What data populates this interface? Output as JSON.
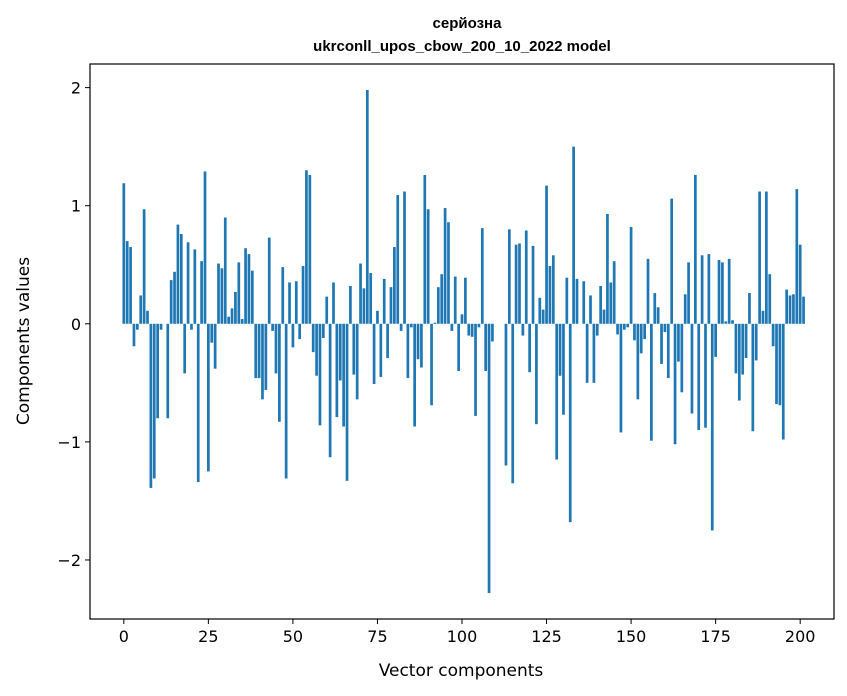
{
  "chart_data": {
    "type": "bar",
    "title": "серйозна",
    "subtitle": "ukrconll_upos_cbow_200_10_2022 model",
    "xlabel": "Vector components",
    "ylabel": "Components values",
    "xlim": [
      -10,
      210
    ],
    "ylim": [
      -2.5,
      2.2
    ],
    "xticks": [
      0,
      25,
      50,
      75,
      100,
      125,
      150,
      175,
      200
    ],
    "xtick_labels": [
      "0",
      "25",
      "50",
      "75",
      "100",
      "125",
      "150",
      "175",
      "200"
    ],
    "yticks": [
      -2,
      -1,
      0,
      1,
      2
    ],
    "ytick_labels": [
      "−2",
      "−1",
      "0",
      "1",
      "2"
    ],
    "bar_color": "#1f77b4",
    "grid": false,
    "values": [
      1.19,
      0.7,
      0.65,
      -0.19,
      -0.05,
      0.24,
      0.97,
      0.11,
      -1.39,
      -1.31,
      -0.8,
      -0.05,
      0.0,
      -0.8,
      0.37,
      0.44,
      0.84,
      0.76,
      -0.42,
      0.69,
      -0.05,
      0.63,
      -1.34,
      0.53,
      1.29,
      -1.25,
      -0.16,
      -0.38,
      0.51,
      0.47,
      0.9,
      0.06,
      0.13,
      0.27,
      0.52,
      0.04,
      0.64,
      0.59,
      0.45,
      -0.46,
      -0.46,
      -0.64,
      -0.56,
      0.73,
      -0.06,
      -0.42,
      -0.83,
      0.48,
      -1.31,
      0.35,
      -0.2,
      0.36,
      -0.13,
      0.49,
      1.3,
      1.26,
      -0.24,
      -0.44,
      -0.86,
      -0.12,
      0.23,
      -1.13,
      0.35,
      -0.79,
      -0.48,
      -0.87,
      -1.33,
      0.32,
      -0.43,
      -0.64,
      0.51,
      0.3,
      1.98,
      0.43,
      -0.51,
      0.11,
      -0.45,
      0.38,
      -0.29,
      0.31,
      0.65,
      1.09,
      -0.06,
      1.12,
      -0.46,
      -0.03,
      -0.87,
      -0.3,
      -0.37,
      1.26,
      0.97,
      -0.69,
      0.01,
      0.31,
      0.42,
      0.98,
      0.86,
      -0.06,
      0.4,
      -0.4,
      0.08,
      0.39,
      -0.1,
      -0.11,
      -0.78,
      -0.03,
      0.81,
      -0.4,
      -2.28,
      -0.15,
      0.0,
      0.0,
      0.0,
      -1.2,
      0.8,
      -1.35,
      0.67,
      0.68,
      -0.1,
      0.79,
      -0.41,
      0.66,
      -0.85,
      0.22,
      0.12,
      1.17,
      0.49,
      0.58,
      -1.15,
      -0.44,
      -0.77,
      0.39,
      -1.68,
      1.5,
      0.38,
      0.0,
      0.36,
      -0.5,
      0.24,
      -0.5,
      -0.1,
      0.32,
      0.12,
      0.93,
      0.35,
      0.53,
      -0.09,
      -0.92,
      -0.05,
      -0.03,
      0.82,
      -0.14,
      -0.64,
      -0.25,
      -0.13,
      0.55,
      -0.99,
      0.26,
      0.14,
      -0.34,
      -0.07,
      -0.46,
      1.06,
      -1.02,
      -0.32,
      -0.58,
      0.25,
      0.52,
      -0.76,
      1.26,
      -0.9,
      0.58,
      -0.88,
      0.59,
      -1.75,
      -0.28,
      0.54,
      0.52,
      0.02,
      0.55,
      0.03,
      -0.42,
      -0.65,
      -0.43,
      -0.29,
      0.26,
      -0.91,
      -0.31,
      1.12,
      0.11,
      1.12,
      0.42,
      -0.19,
      -0.68,
      -0.69,
      -0.98,
      0.29,
      0.24,
      0.25,
      1.14,
      0.67,
      0.23
    ]
  }
}
